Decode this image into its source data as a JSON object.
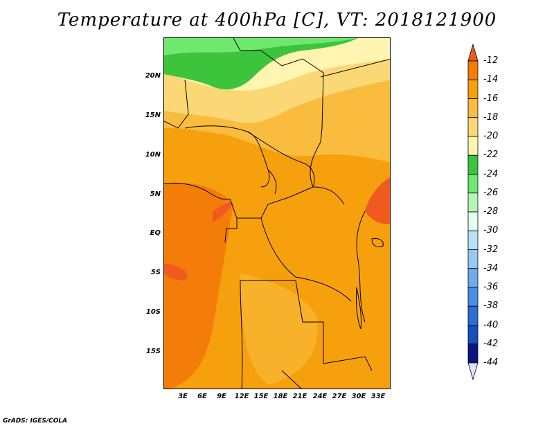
{
  "title": "Temperature at 400hPa [C], VT: 2018121900",
  "credit": "GrADS: IGES/COLA",
  "y_axis_labels": [
    "20N",
    "15N",
    "10N",
    "5N",
    "EQ",
    "5S",
    "10S",
    "15S"
  ],
  "x_axis_labels": [
    "3E",
    "6E",
    "9E",
    "12E",
    "15E",
    "18E",
    "21E",
    "24E",
    "27E",
    "30E",
    "33E"
  ],
  "colorbar": {
    "labels": [
      "-12",
      "-14",
      "-16",
      "-18",
      "-20",
      "-22",
      "-24",
      "-26",
      "-28",
      "-30",
      "-32",
      "-34",
      "-36",
      "-38",
      "-40",
      "-42",
      "-44"
    ],
    "colors": [
      "#f05a1e",
      "#f47d0a",
      "#f7a00e",
      "#f9bc3e",
      "#fcd775",
      "#fff5b0",
      "#3cc43c",
      "#6ee86e",
      "#b4f5b4",
      "#e6fff0",
      "#b8e0f8",
      "#96c8f0",
      "#6eaaec",
      "#4a8ce6",
      "#2a6ed6",
      "#1450bc",
      "#0a1482",
      "#e0e0ff"
    ]
  },
  "legend_colors": {
    "g24": "#3cc43c",
    "g26": "#6ee86e",
    "y22": "#fff5b0",
    "y20": "#fcd775",
    "o18": "#f9bc3e",
    "o16": "#f7a00e",
    "o14": "#f47d0a",
    "r12": "#f05a1e"
  }
}
